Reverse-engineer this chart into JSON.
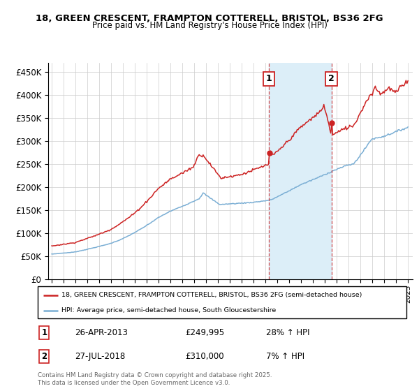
{
  "title_line1": "18, GREEN CRESCENT, FRAMPTON COTTERELL, BRISTOL, BS36 2FG",
  "title_line2": "Price paid vs. HM Land Registry's House Price Index (HPI)",
  "legend_label_red": "18, GREEN CRESCENT, FRAMPTON COTTERELL, BRISTOL, BS36 2FG (semi-detached house)",
  "legend_label_blue": "HPI: Average price, semi-detached house, South Gloucestershire",
  "transaction1_date": "26-APR-2013",
  "transaction1_price": "£249,995",
  "transaction1_hpi": "28% ↑ HPI",
  "transaction2_date": "27-JUL-2018",
  "transaction2_price": "£310,000",
  "transaction2_hpi": "7% ↑ HPI",
  "footer": "Contains HM Land Registry data © Crown copyright and database right 2025.\nThis data is licensed under the Open Government Licence v3.0.",
  "color_red": "#cc2222",
  "color_blue": "#7aaed4",
  "color_shaded": "#dceef8",
  "background_color": "#ffffff",
  "grid_color": "#cccccc",
  "ylim": [
    0,
    470000
  ],
  "yticks": [
    0,
    50000,
    100000,
    150000,
    200000,
    250000,
    300000,
    350000,
    400000,
    450000
  ],
  "xlim_start": 1994.7,
  "xlim_end": 2025.4,
  "transaction1_x": 2013.3,
  "transaction2_x": 2018.55
}
